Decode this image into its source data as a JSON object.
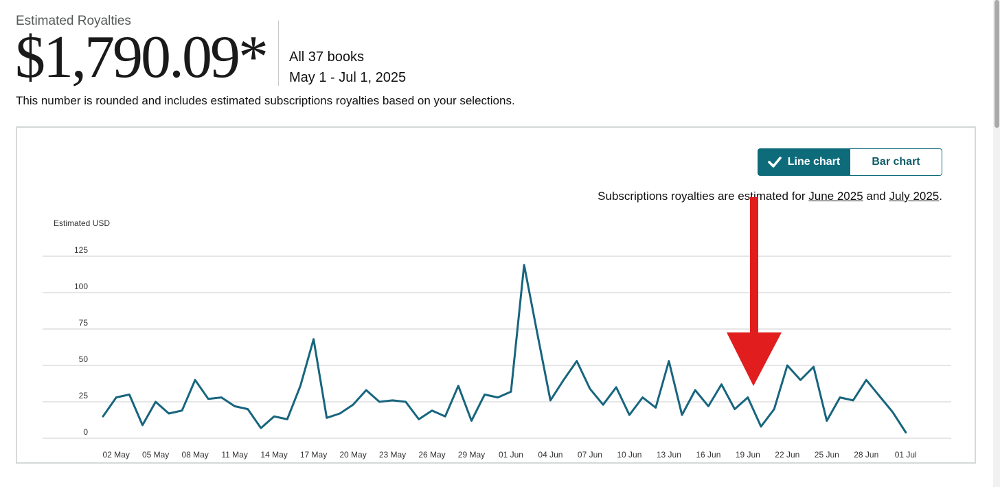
{
  "header": {
    "title": "Estimated Royalties",
    "amount": "$1,790.09*",
    "books": "All 37 books",
    "date_range": "May 1 - Jul 1, 2025",
    "note": "This number is rounded and includes estimated subscriptions royalties based on your selections."
  },
  "toggle": {
    "line_label": "Line chart",
    "bar_label": "Bar chart",
    "selected": "Line chart"
  },
  "subscriptions_note": {
    "prefix": "Subscriptions royalties are estimated for ",
    "link1": "June 2025",
    "middle": " and ",
    "link2": "July 2025",
    "suffix": "."
  },
  "colors": {
    "line": "#17657e",
    "accent": "#0d6b7a",
    "annotation_arrow": "#e11d1d"
  },
  "chart_data": {
    "type": "line",
    "ylabel": "Estimated USD",
    "ylim": [
      0,
      125
    ],
    "yticks": [
      0,
      25,
      50,
      75,
      100,
      125
    ],
    "grid": true,
    "x_start": "01 May",
    "x_tick_labels": [
      "02 May",
      "05 May",
      "08 May",
      "11 May",
      "14 May",
      "17 May",
      "20 May",
      "23 May",
      "26 May",
      "29 May",
      "01 Jun",
      "04 Jun",
      "07 Jun",
      "10 Jun",
      "13 Jun",
      "16 Jun",
      "19 Jun",
      "22 Jun",
      "25 Jun",
      "28 Jun",
      "01 Jul"
    ],
    "series": [
      {
        "values": [
          15,
          28,
          30,
          9,
          25,
          17,
          19,
          40,
          27,
          28,
          22,
          20,
          7,
          15,
          13,
          36,
          68,
          14,
          17,
          23,
          33,
          25,
          26,
          25,
          13,
          19,
          15,
          36,
          12,
          30,
          28,
          32,
          119,
          72,
          26,
          40,
          53,
          34,
          23,
          35,
          16,
          28,
          21,
          53,
          16,
          33,
          22,
          37,
          20,
          28,
          8,
          20,
          50,
          40,
          49,
          12,
          28,
          26,
          40,
          29,
          18,
          4
        ]
      }
    ]
  }
}
